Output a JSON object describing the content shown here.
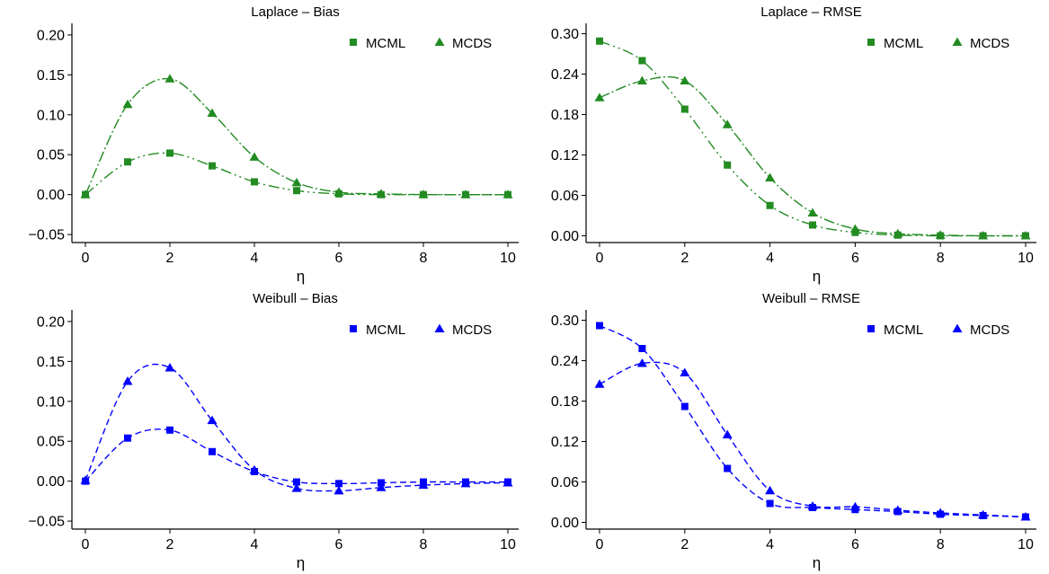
{
  "chart_data": [
    {
      "type": "line",
      "title": "Laplace – Bias",
      "xlabel": "η",
      "ylabel": "",
      "xlim": [
        0,
        10
      ],
      "ylim": [
        -0.06,
        0.21
      ],
      "xticks": [
        "0",
        "2",
        "4",
        "6",
        "8",
        "10"
      ],
      "yticks": [
        "−0.05",
        "0.00",
        "0.05",
        "0.10",
        "0.15",
        "0.20"
      ],
      "x": [
        0,
        1,
        2,
        3,
        4,
        5,
        6,
        7,
        8,
        9,
        10
      ],
      "legend_position": "top-right",
      "color": "#228b22",
      "series": [
        {
          "name": "MCML",
          "marker": "square",
          "values": [
            0.0,
            0.041,
            0.052,
            0.036,
            0.016,
            0.005,
            0.001,
            0.0,
            0.0,
            0.0,
            0.0
          ]
        },
        {
          "name": "MCDS",
          "marker": "triangle",
          "values": [
            0.0,
            0.113,
            0.145,
            0.102,
            0.047,
            0.015,
            0.003,
            0.001,
            0.0,
            0.0,
            0.0
          ]
        }
      ]
    },
    {
      "type": "line",
      "title": "Laplace – RMSE",
      "xlabel": "η",
      "ylabel": "",
      "xlim": [
        0,
        10
      ],
      "ylim": [
        -0.01,
        0.31
      ],
      "xticks": [
        "0",
        "2",
        "4",
        "6",
        "8",
        "10"
      ],
      "yticks": [
        "0.00",
        "0.06",
        "0.12",
        "0.18",
        "0.24",
        "0.30"
      ],
      "x": [
        0,
        1,
        2,
        3,
        4,
        5,
        6,
        7,
        8,
        9,
        10
      ],
      "legend_position": "top-right",
      "color": "#228b22",
      "series": [
        {
          "name": "MCML",
          "marker": "square",
          "values": [
            0.289,
            0.26,
            0.188,
            0.105,
            0.045,
            0.016,
            0.005,
            0.001,
            0.0,
            0.0,
            0.0
          ]
        },
        {
          "name": "MCDS",
          "marker": "triangle",
          "values": [
            0.205,
            0.23,
            0.23,
            0.165,
            0.086,
            0.034,
            0.01,
            0.003,
            0.001,
            0.0,
            0.0
          ]
        }
      ]
    },
    {
      "type": "line",
      "title": "Weibull – Bias",
      "xlabel": "η",
      "ylabel": "",
      "xlim": [
        0,
        10
      ],
      "ylim": [
        -0.06,
        0.21
      ],
      "xticks": [
        "0",
        "2",
        "4",
        "6",
        "8",
        "10"
      ],
      "yticks": [
        "−0.05",
        "0.00",
        "0.05",
        "0.10",
        "0.15",
        "0.20"
      ],
      "x": [
        0,
        1,
        2,
        3,
        4,
        5,
        6,
        7,
        8,
        9,
        10
      ],
      "legend_position": "top-right",
      "color": "#0000ff",
      "series": [
        {
          "name": "MCML",
          "marker": "square",
          "values": [
            0.0,
            0.054,
            0.064,
            0.037,
            0.012,
            -0.001,
            -0.003,
            -0.002,
            -0.001,
            -0.001,
            -0.001
          ]
        },
        {
          "name": "MCDS",
          "marker": "triangle",
          "values": [
            0.001,
            0.125,
            0.142,
            0.076,
            0.014,
            -0.009,
            -0.012,
            -0.008,
            -0.005,
            -0.003,
            -0.002
          ]
        }
      ]
    },
    {
      "type": "line",
      "title": "Weibull – RMSE",
      "xlabel": "η",
      "ylabel": "",
      "xlim": [
        0,
        10
      ],
      "ylim": [
        -0.01,
        0.31
      ],
      "xticks": [
        "0",
        "2",
        "4",
        "6",
        "8",
        "10"
      ],
      "yticks": [
        "0.00",
        "0.06",
        "0.12",
        "0.18",
        "0.24",
        "0.30"
      ],
      "x": [
        0,
        1,
        2,
        3,
        4,
        5,
        6,
        7,
        8,
        9,
        10
      ],
      "legend_position": "top-right",
      "color": "#0000ff",
      "series": [
        {
          "name": "MCML",
          "marker": "square",
          "values": [
            0.292,
            0.258,
            0.172,
            0.08,
            0.028,
            0.022,
            0.019,
            0.016,
            0.012,
            0.01,
            0.008
          ]
        },
        {
          "name": "MCDS",
          "marker": "triangle",
          "values": [
            0.205,
            0.236,
            0.222,
            0.13,
            0.047,
            0.024,
            0.023,
            0.018,
            0.014,
            0.011,
            0.008
          ]
        }
      ]
    }
  ]
}
